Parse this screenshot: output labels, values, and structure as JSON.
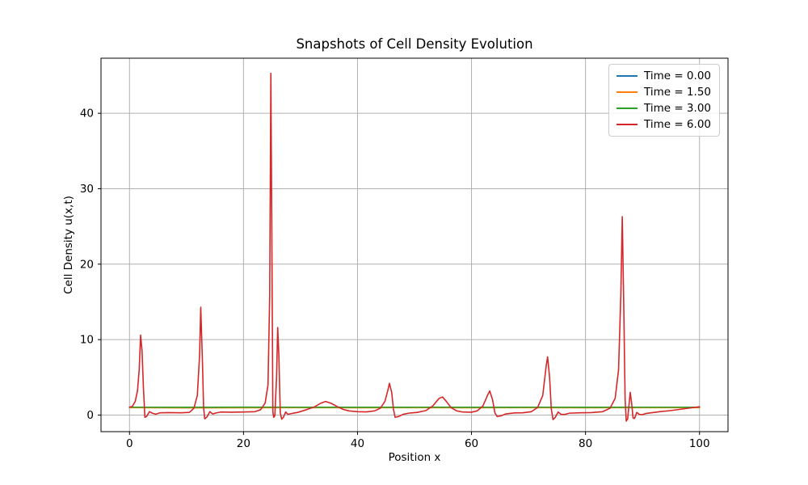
{
  "figure": {
    "background": "#ffffff"
  },
  "chart_data": {
    "type": "line",
    "title": "Snapshots of Cell Density Evolution",
    "xlabel": "Position x",
    "ylabel": "Cell Density u(x,t)",
    "xlim": [
      -5,
      105
    ],
    "ylim": [
      -2.2,
      47.3
    ],
    "x_ticks": [
      0,
      20,
      40,
      60,
      80,
      100
    ],
    "y_ticks": [
      0,
      10,
      20,
      30,
      40
    ],
    "grid": true,
    "grid_color": "#b0b0b0",
    "spine_color": "#000000",
    "legend_position": "upper right",
    "series": [
      {
        "name": "Time = 0.00",
        "color": "#1f77b4",
        "x": [
          0,
          100
        ],
        "y": [
          1.0,
          1.0
        ]
      },
      {
        "name": "Time = 1.50",
        "color": "#ff7f0e",
        "x": [
          0,
          10,
          20,
          30,
          40,
          50,
          60,
          70,
          80,
          90,
          100
        ],
        "y": [
          0.98,
          0.95,
          0.97,
          0.98,
          0.97,
          0.98,
          0.97,
          0.98,
          0.97,
          0.98,
          0.98
        ]
      },
      {
        "name": "Time = 3.00",
        "color": "#2ca02c",
        "x": [
          0,
          10,
          20,
          30,
          40,
          50,
          60,
          70,
          80,
          90,
          100
        ],
        "y": [
          1.04,
          1.03,
          1.05,
          1.04,
          1.03,
          1.04,
          1.03,
          1.04,
          1.03,
          1.04,
          1.04
        ]
      },
      {
        "name": "Time = 6.00",
        "color": "#d62728",
        "x": [
          0,
          0.5,
          1,
          1.4,
          1.7,
          1.95,
          2.2,
          2.45,
          2.7,
          3,
          3.5,
          4,
          4.6,
          5.4,
          7,
          9,
          10.5,
          11.3,
          11.9,
          12.3,
          12.5,
          12.8,
          13,
          13.2,
          13.6,
          14.1,
          14.6,
          15.2,
          16,
          18,
          20,
          22,
          23,
          23.8,
          24.3,
          24.6,
          24.8,
          25,
          25.15,
          25.3,
          25.5,
          25.8,
          26,
          26.2,
          26.45,
          26.7,
          27,
          27.4,
          27.8,
          28.4,
          29.5,
          31,
          32.5,
          33.5,
          34.4,
          35.4,
          36.5,
          37.5,
          38.5,
          40,
          41.5,
          43,
          44,
          44.8,
          45.3,
          45.6,
          46,
          46.3,
          46.6,
          47.2,
          48,
          49,
          50.5,
          52,
          53.2,
          54.3,
          54.9,
          55.6,
          56.4,
          57.4,
          58.5,
          60,
          61,
          62,
          62.8,
          63.2,
          63.7,
          64.1,
          64.5,
          65.2,
          66,
          67.5,
          69,
          70.5,
          71.6,
          72.5,
          73.1,
          73.35,
          73.7,
          74,
          74.3,
          74.7,
          75.2,
          75.7,
          76.3,
          77.2,
          79,
          81,
          83,
          84.3,
          85.2,
          85.8,
          86.2,
          86.45,
          86.7,
          86.95,
          87.15,
          87.4,
          87.65,
          87.85,
          88.1,
          88.35,
          88.6,
          89,
          89.4,
          89.9,
          90.6,
          91.5,
          93,
          95,
          97,
          99,
          100
        ],
        "y": [
          1.05,
          1.15,
          1.8,
          3.2,
          6,
          10.6,
          8.5,
          3.5,
          -0.3,
          -0.2,
          0.45,
          0.25,
          0.12,
          0.3,
          0.33,
          0.3,
          0.35,
          0.9,
          2.6,
          8,
          14.3,
          7,
          1,
          -0.5,
          -0.25,
          0.45,
          0.15,
          0.28,
          0.4,
          0.38,
          0.4,
          0.45,
          0.7,
          1.6,
          4,
          16,
          45.3,
          20,
          0.5,
          -0.3,
          -0.1,
          5,
          11.6,
          8,
          0.3,
          -0.55,
          -0.3,
          0.4,
          0.1,
          0.2,
          0.35,
          0.7,
          1.1,
          1.55,
          1.8,
          1.55,
          1.1,
          0.75,
          0.55,
          0.45,
          0.42,
          0.55,
          0.9,
          1.8,
          3.2,
          4.2,
          3,
          0.8,
          -0.3,
          -0.2,
          0.1,
          0.25,
          0.35,
          0.6,
          1.2,
          2.2,
          2.4,
          1.8,
          1,
          0.55,
          0.4,
          0.38,
          0.55,
          1.2,
          2.6,
          3.2,
          2,
          0.3,
          -0.2,
          -0.1,
          0.15,
          0.28,
          0.3,
          0.45,
          1,
          2.6,
          6.5,
          7.7,
          5,
          0.8,
          -0.6,
          -0.3,
          0.4,
          0.1,
          0.08,
          0.25,
          0.3,
          0.32,
          0.45,
          0.9,
          2.2,
          6,
          16,
          26.3,
          15,
          2,
          -0.8,
          -0.5,
          1.5,
          3,
          1.5,
          -0.4,
          -0.45,
          0.35,
          0.1,
          0.05,
          0.2,
          0.3,
          0.45,
          0.6,
          0.8,
          1,
          1.1
        ]
      }
    ]
  }
}
